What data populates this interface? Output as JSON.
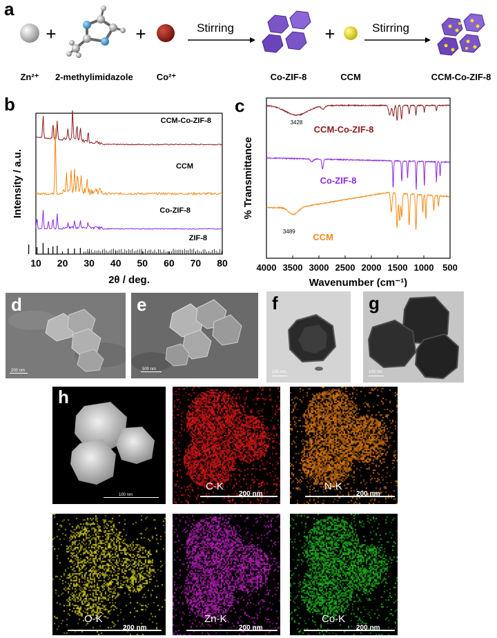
{
  "panel_labels": {
    "a": "a",
    "b": "b",
    "c": "c",
    "d": "d",
    "e": "e",
    "f": "f",
    "g": "g",
    "h": "h"
  },
  "scheme": {
    "reagents": [
      "Zn²⁺",
      "2-methylimidazole",
      "Co²⁺",
      "Co-ZIF-8",
      "CCM",
      "CCM-Co-ZIF-8"
    ],
    "step1": "Stirring",
    "step2": "Stirring",
    "plus": "+",
    "colors": {
      "zn": "#b0b0b0",
      "co": "#8b1a10",
      "ccm": "#e8e020",
      "zif": "#7b55c8"
    }
  },
  "chart_data": [
    {
      "type": "line",
      "xlabel": "2θ / deg.",
      "ylabel": "Intensity / a.u.",
      "xlim": [
        10,
        80
      ],
      "xticks": [
        10,
        20,
        30,
        40,
        50,
        60,
        70,
        80
      ],
      "series": [
        {
          "name": "CCM-Co-ZIF-8",
          "color": "#8b1a1a",
          "peaks": [
            [
              12.7,
              0.65
            ],
            [
              16.4,
              0.45
            ],
            [
              18.0,
              0.55
            ],
            [
              22.0,
              0.35
            ],
            [
              23.8,
              0.95
            ],
            [
              25.4,
              0.5
            ],
            [
              26.7,
              0.4
            ],
            [
              29.6,
              0.3
            ]
          ]
        },
        {
          "name": "CCM",
          "color": "#f28a16",
          "peaks": [
            [
              17.3,
              1.0
            ],
            [
              21.5,
              0.25
            ],
            [
              23.2,
              0.35
            ],
            [
              24.5,
              0.3
            ],
            [
              25.6,
              0.28
            ],
            [
              27.0,
              0.22
            ],
            [
              29.3,
              0.18
            ]
          ]
        },
        {
          "name": "Co-ZIF-8",
          "color": "#8a2be2",
          "peaks": [
            [
              7.3,
              1.0
            ],
            [
              10.4,
              0.4
            ],
            [
              12.7,
              0.7
            ],
            [
              14.7,
              0.3
            ],
            [
              16.4,
              0.4
            ],
            [
              18.0,
              0.55
            ],
            [
              22.1,
              0.22
            ],
            [
              24.5,
              0.22
            ],
            [
              26.7,
              0.28
            ],
            [
              29.6,
              0.2
            ]
          ]
        },
        {
          "name": "ZIF-8",
          "color": "#000000",
          "sticks": true
        }
      ]
    },
    {
      "type": "line",
      "xlabel": "Wavenumber (cm⁻¹)",
      "ylabel": "% Transmittance",
      "xlim": [
        4000,
        500
      ],
      "xticks": [
        4000,
        3500,
        3000,
        2500,
        2000,
        1500,
        1000,
        500
      ],
      "annotations": [
        "3428",
        "3489"
      ],
      "series": [
        {
          "name": "CCM-Co-ZIF-8",
          "color": "#8b1a1a"
        },
        {
          "name": "Co-ZIF-8",
          "color": "#8a2be2"
        },
        {
          "name": "CCM",
          "color": "#f28a16"
        }
      ]
    }
  ],
  "micrographs": [
    {
      "id": "d",
      "bg": "#7c7c7c",
      "scale": "200 nm"
    },
    {
      "id": "e",
      "bg": "#6e6e6e",
      "scale": "500 nm"
    },
    {
      "id": "f",
      "bg": "#d8d8d8",
      "scale": "100 nm"
    },
    {
      "id": "g",
      "bg": "#c8c8c8",
      "scale": "100 nm"
    }
  ],
  "maps": [
    {
      "label": "",
      "scale": "100 nm",
      "color": "#ffffff"
    },
    {
      "label": "C-K",
      "scale": "200 nm",
      "color": "#e01818"
    },
    {
      "label": "N-K",
      "scale": "200 nm",
      "color": "#e07a10"
    },
    {
      "label": "O-K",
      "scale": "200 nm",
      "color": "#d8d020"
    },
    {
      "label": "Zn-K",
      "scale": "200 nm",
      "color": "#c020c0"
    },
    {
      "label": "Co-K",
      "scale": "200 nm",
      "color": "#20c020"
    }
  ]
}
